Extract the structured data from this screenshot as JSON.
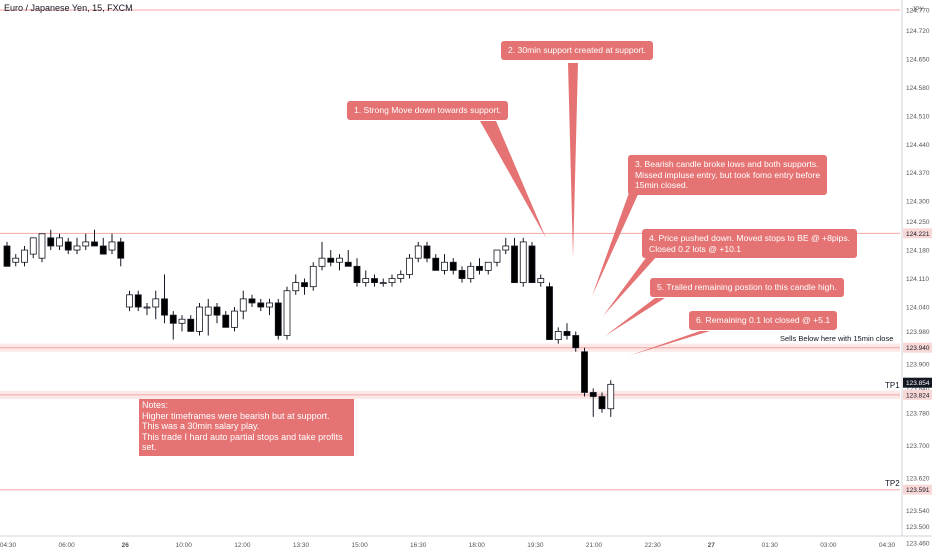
{
  "title": "Euro / Japanese Yen, 15, FXCM",
  "currency": "JPY",
  "colors": {
    "up": "#ffffff",
    "down": "#000000",
    "line": "#f4a6a6",
    "band": "#fde8e8",
    "callout": "#e57373",
    "current": "#131722"
  },
  "chart_data": {
    "type": "candlestick",
    "title": "Euro / Japanese Yen, 15, FXCM",
    "x_ticks": [
      "04:30",
      "06:00",
      "26",
      "10:00",
      "12:00",
      "13:30",
      "15:00",
      "16:30",
      "18:00",
      "19:30",
      "21:00",
      "22:30",
      "27",
      "01:30",
      "03:00",
      "04:30"
    ],
    "y_ticks": [
      "124.770",
      "124.720",
      "124.650",
      "124.580",
      "124.510",
      "124.440",
      "124.370",
      "124.300",
      "124.250",
      "124.180",
      "124.110",
      "124.040",
      "123.980",
      "123.900",
      "123.840",
      "123.780",
      "123.700",
      "123.620",
      "123.540",
      "123.500",
      "123.460"
    ],
    "ylim": [
      123.44,
      124.78
    ],
    "price_labels": [
      {
        "value": 124.221,
        "label": "124.221"
      },
      {
        "value": 123.94,
        "label": "123.940"
      },
      {
        "value": 123.854,
        "label": "123.854",
        "current": true
      },
      {
        "value": 123.824,
        "label": "123.824"
      },
      {
        "value": 123.591,
        "label": "123.591"
      }
    ],
    "hlines": [
      124.77,
      124.221,
      123.94,
      123.824,
      123.591
    ],
    "bands": [
      [
        123.93,
        123.95
      ],
      [
        123.814,
        123.834
      ]
    ],
    "candles": [
      {
        "o": 124.19,
        "h": 124.2,
        "l": 124.14,
        "c": 124.14
      },
      {
        "o": 124.15,
        "h": 124.17,
        "l": 124.14,
        "c": 124.16
      },
      {
        "o": 124.15,
        "h": 124.19,
        "l": 124.14,
        "c": 124.18
      },
      {
        "o": 124.17,
        "h": 124.21,
        "l": 124.16,
        "c": 124.21
      },
      {
        "o": 124.16,
        "h": 124.22,
        "l": 124.15,
        "c": 124.22
      },
      {
        "o": 124.21,
        "h": 124.23,
        "l": 124.18,
        "c": 124.19
      },
      {
        "o": 124.19,
        "h": 124.22,
        "l": 124.18,
        "c": 124.21
      },
      {
        "o": 124.2,
        "h": 124.21,
        "l": 124.17,
        "c": 124.18
      },
      {
        "o": 124.18,
        "h": 124.21,
        "l": 124.17,
        "c": 124.19
      },
      {
        "o": 124.19,
        "h": 124.22,
        "l": 124.18,
        "c": 124.2
      },
      {
        "o": 124.2,
        "h": 124.23,
        "l": 124.19,
        "c": 124.19
      },
      {
        "o": 124.19,
        "h": 124.21,
        "l": 124.17,
        "c": 124.17
      },
      {
        "o": 124.18,
        "h": 124.22,
        "l": 124.17,
        "c": 124.2
      },
      {
        "o": 124.2,
        "h": 124.21,
        "l": 124.14,
        "c": 124.16
      },
      {
        "o": 124.04,
        "h": 124.08,
        "l": 124.03,
        "c": 124.07
      },
      {
        "o": 124.07,
        "h": 124.08,
        "l": 124.03,
        "c": 124.04
      },
      {
        "o": 124.04,
        "h": 124.05,
        "l": 124.02,
        "c": 124.04
      },
      {
        "o": 124.04,
        "h": 124.08,
        "l": 124.01,
        "c": 124.06
      },
      {
        "o": 124.06,
        "h": 124.12,
        "l": 124.0,
        "c": 124.02
      },
      {
        "o": 124.02,
        "h": 124.03,
        "l": 123.96,
        "c": 124.0
      },
      {
        "o": 124.0,
        "h": 124.02,
        "l": 123.98,
        "c": 124.01
      },
      {
        "o": 124.01,
        "h": 124.02,
        "l": 123.98,
        "c": 123.98
      },
      {
        "o": 123.98,
        "h": 124.05,
        "l": 123.97,
        "c": 124.04
      },
      {
        "o": 124.02,
        "h": 124.06,
        "l": 123.97,
        "c": 124.04
      },
      {
        "o": 124.04,
        "h": 124.05,
        "l": 124.0,
        "c": 124.02
      },
      {
        "o": 124.02,
        "h": 124.03,
        "l": 123.99,
        "c": 123.99
      },
      {
        "o": 123.99,
        "h": 124.04,
        "l": 123.98,
        "c": 124.03
      },
      {
        "o": 124.03,
        "h": 124.08,
        "l": 124.01,
        "c": 124.06
      },
      {
        "o": 124.06,
        "h": 124.07,
        "l": 124.04,
        "c": 124.05
      },
      {
        "o": 124.05,
        "h": 124.06,
        "l": 124.03,
        "c": 124.04
      },
      {
        "o": 124.04,
        "h": 124.06,
        "l": 124.02,
        "c": 124.05
      },
      {
        "o": 124.05,
        "h": 124.06,
        "l": 123.96,
        "c": 123.97
      },
      {
        "o": 123.97,
        "h": 124.09,
        "l": 123.96,
        "c": 124.08
      },
      {
        "o": 124.08,
        "h": 124.12,
        "l": 124.07,
        "c": 124.1
      },
      {
        "o": 124.1,
        "h": 124.11,
        "l": 124.07,
        "c": 124.09
      },
      {
        "o": 124.09,
        "h": 124.15,
        "l": 124.08,
        "c": 124.14
      },
      {
        "o": 124.14,
        "h": 124.2,
        "l": 124.13,
        "c": 124.16
      },
      {
        "o": 124.16,
        "h": 124.18,
        "l": 124.14,
        "c": 124.15
      },
      {
        "o": 124.15,
        "h": 124.17,
        "l": 124.13,
        "c": 124.16
      },
      {
        "o": 124.15,
        "h": 124.18,
        "l": 124.14,
        "c": 124.14
      },
      {
        "o": 124.14,
        "h": 124.16,
        "l": 124.09,
        "c": 124.1
      },
      {
        "o": 124.1,
        "h": 124.13,
        "l": 124.09,
        "c": 124.11
      },
      {
        "o": 124.11,
        "h": 124.12,
        "l": 124.09,
        "c": 124.1
      },
      {
        "o": 124.1,
        "h": 124.11,
        "l": 124.09,
        "c": 124.1
      },
      {
        "o": 124.1,
        "h": 124.12,
        "l": 124.09,
        "c": 124.11
      },
      {
        "o": 124.11,
        "h": 124.13,
        "l": 124.1,
        "c": 124.12
      },
      {
        "o": 124.12,
        "h": 124.17,
        "l": 124.11,
        "c": 124.16
      },
      {
        "o": 124.16,
        "h": 124.2,
        "l": 124.15,
        "c": 124.19
      },
      {
        "o": 124.19,
        "h": 124.2,
        "l": 124.15,
        "c": 124.16
      },
      {
        "o": 124.16,
        "h": 124.17,
        "l": 124.13,
        "c": 124.13
      },
      {
        "o": 124.13,
        "h": 124.17,
        "l": 124.12,
        "c": 124.15
      },
      {
        "o": 124.15,
        "h": 124.16,
        "l": 124.12,
        "c": 124.13
      },
      {
        "o": 124.13,
        "h": 124.14,
        "l": 124.1,
        "c": 124.11
      },
      {
        "o": 124.11,
        "h": 124.15,
        "l": 124.1,
        "c": 124.14
      },
      {
        "o": 124.14,
        "h": 124.16,
        "l": 124.12,
        "c": 124.13
      },
      {
        "o": 124.13,
        "h": 124.15,
        "l": 124.12,
        "c": 124.15
      },
      {
        "o": 124.15,
        "h": 124.18,
        "l": 124.14,
        "c": 124.18
      },
      {
        "o": 124.18,
        "h": 124.21,
        "l": 124.17,
        "c": 124.19
      },
      {
        "o": 124.19,
        "h": 124.21,
        "l": 124.1,
        "c": 124.1
      },
      {
        "o": 124.1,
        "h": 124.21,
        "l": 124.09,
        "c": 124.2
      },
      {
        "o": 124.19,
        "h": 124.2,
        "l": 124.1,
        "c": 124.1
      },
      {
        "o": 124.1,
        "h": 124.12,
        "l": 124.09,
        "c": 124.11
      },
      {
        "o": 124.09,
        "h": 124.1,
        "l": 123.96,
        "c": 123.96
      },
      {
        "o": 123.96,
        "h": 123.99,
        "l": 123.95,
        "c": 123.98
      },
      {
        "o": 123.98,
        "h": 124.0,
        "l": 123.96,
        "c": 123.97
      },
      {
        "o": 123.97,
        "h": 123.98,
        "l": 123.93,
        "c": 123.94
      },
      {
        "o": 123.93,
        "h": 123.94,
        "l": 123.82,
        "c": 123.83
      },
      {
        "o": 123.83,
        "h": 123.84,
        "l": 123.77,
        "c": 123.82
      },
      {
        "o": 123.82,
        "h": 123.83,
        "l": 123.78,
        "c": 123.79
      },
      {
        "o": 123.79,
        "h": 123.86,
        "l": 123.77,
        "c": 123.85
      }
    ]
  },
  "annotations": [
    {
      "id": "a1",
      "text": "1. Strong Move down towards support."
    },
    {
      "id": "a2",
      "text": "2. 30min support created at support."
    },
    {
      "id": "a3",
      "text": "3. Bearish candle broke lows and both supports.\nMissed impluse entry, but took fomo entry before\n15min closed."
    },
    {
      "id": "a4",
      "text": "4. Price pushed down. Moved stops to BE @ +8pips.\nClosed 0.2 lots @ +10.1"
    },
    {
      "id": "a5",
      "text": "5. Trailed remaining postion to this candle high."
    },
    {
      "id": "a6",
      "text": "6. Remaining 0.1 lot closed @ +5.1"
    }
  ],
  "notes": "Notes:\nHigher timeframes were bearish but at support.\nThis was a 30min salary play.\nThis trade I hard auto partial stops and take profits set.",
  "labels": {
    "sells": "Sells Below here with 15min close",
    "tp1": "TP1",
    "tp2": "TP2"
  }
}
